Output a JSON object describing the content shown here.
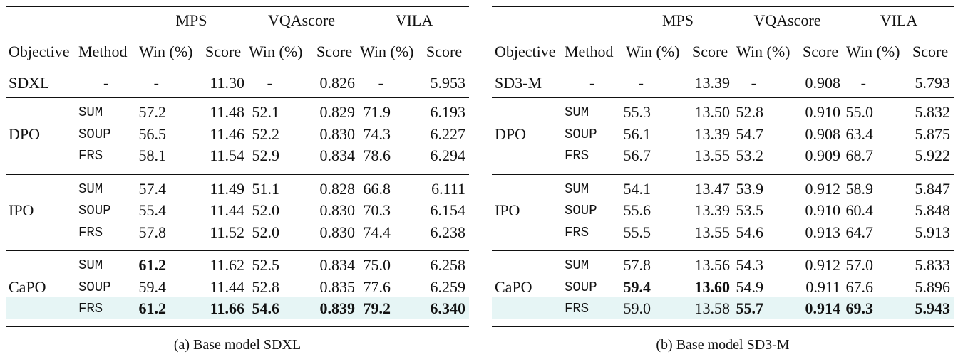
{
  "tables": [
    {
      "caption": "(a) Base model SDXL",
      "groups": [
        "MPS",
        "VQAscore",
        "VILA"
      ],
      "columns": [
        "Objective",
        "Method",
        "Win (%)",
        "Score",
        "Win (%)",
        "Score",
        "Win (%)",
        "Score"
      ],
      "baseline": {
        "objective": "SDXL",
        "method": "-",
        "values": [
          "-",
          "11.30",
          "-",
          "0.826",
          "-",
          "5.953"
        ]
      },
      "blocks": [
        {
          "objective": "DPO",
          "rows": [
            {
              "method": "SUM",
              "values": [
                "57.2",
                "11.48",
                "52.1",
                "0.829",
                "71.9",
                "6.193"
              ],
              "bold": []
            },
            {
              "method": "SOUP",
              "values": [
                "56.5",
                "11.46",
                "52.2",
                "0.830",
                "74.3",
                "6.227"
              ],
              "bold": []
            },
            {
              "method": "FRS",
              "values": [
                "58.1",
                "11.54",
                "52.9",
                "0.834",
                "78.6",
                "6.294"
              ],
              "bold": []
            }
          ]
        },
        {
          "objective": "IPO",
          "rows": [
            {
              "method": "SUM",
              "values": [
                "57.4",
                "11.49",
                "51.1",
                "0.828",
                "66.8",
                "6.111"
              ],
              "bold": []
            },
            {
              "method": "SOUP",
              "values": [
                "55.4",
                "11.44",
                "52.0",
                "0.830",
                "70.3",
                "6.154"
              ],
              "bold": []
            },
            {
              "method": "FRS",
              "values": [
                "57.8",
                "11.52",
                "52.0",
                "0.830",
                "74.4",
                "6.238"
              ],
              "bold": []
            }
          ]
        },
        {
          "objective": "CaPO",
          "rows": [
            {
              "method": "SUM",
              "values": [
                "61.2",
                "11.62",
                "52.5",
                "0.834",
                "75.0",
                "6.258"
              ],
              "bold": [
                0
              ]
            },
            {
              "method": "SOUP",
              "values": [
                "59.4",
                "11.44",
                "52.8",
                "0.835",
                "77.6",
                "6.259"
              ],
              "bold": []
            },
            {
              "method": "FRS",
              "values": [
                "61.2",
                "11.66",
                "54.6",
                "0.839",
                "79.2",
                "6.340"
              ],
              "bold": [
                0,
                1,
                2,
                3,
                4,
                5
              ],
              "highlight": true
            }
          ]
        }
      ]
    },
    {
      "caption": "(b) Base model SD3-M",
      "groups": [
        "MPS",
        "VQAscore",
        "VILA"
      ],
      "columns": [
        "Objective",
        "Method",
        "Win (%)",
        "Score",
        "Win (%)",
        "Score",
        "Win (%)",
        "Score"
      ],
      "baseline": {
        "objective": "SD3-M",
        "method": "-",
        "values": [
          "-",
          "13.39",
          "-",
          "0.908",
          "-",
          "5.793"
        ]
      },
      "blocks": [
        {
          "objective": "DPO",
          "rows": [
            {
              "method": "SUM",
              "values": [
                "55.3",
                "13.50",
                "52.8",
                "0.910",
                "55.0",
                "5.832"
              ],
              "bold": []
            },
            {
              "method": "SOUP",
              "values": [
                "56.1",
                "13.39",
                "54.7",
                "0.908",
                "63.4",
                "5.875"
              ],
              "bold": []
            },
            {
              "method": "FRS",
              "values": [
                "56.7",
                "13.55",
                "53.2",
                "0.909",
                "68.7",
                "5.922"
              ],
              "bold": []
            }
          ]
        },
        {
          "objective": "IPO",
          "rows": [
            {
              "method": "SUM",
              "values": [
                "54.1",
                "13.47",
                "53.9",
                "0.912",
                "58.9",
                "5.847"
              ],
              "bold": []
            },
            {
              "method": "SOUP",
              "values": [
                "55.6",
                "13.39",
                "53.5",
                "0.910",
                "60.4",
                "5.848"
              ],
              "bold": []
            },
            {
              "method": "FRS",
              "values": [
                "55.5",
                "13.55",
                "54.6",
                "0.913",
                "64.7",
                "5.913"
              ],
              "bold": []
            }
          ]
        },
        {
          "objective": "CaPO",
          "rows": [
            {
              "method": "SUM",
              "values": [
                "57.8",
                "13.56",
                "54.3",
                "0.912",
                "57.0",
                "5.833"
              ],
              "bold": []
            },
            {
              "method": "SOUP",
              "values": [
                "59.4",
                "13.60",
                "54.9",
                "0.911",
                "67.6",
                "5.896"
              ],
              "bold": [
                0,
                1
              ]
            },
            {
              "method": "FRS",
              "values": [
                "59.0",
                "13.58",
                "55.7",
                "0.914",
                "69.3",
                "5.943"
              ],
              "bold": [
                2,
                3,
                4,
                5
              ],
              "highlight": true
            }
          ]
        }
      ]
    }
  ]
}
